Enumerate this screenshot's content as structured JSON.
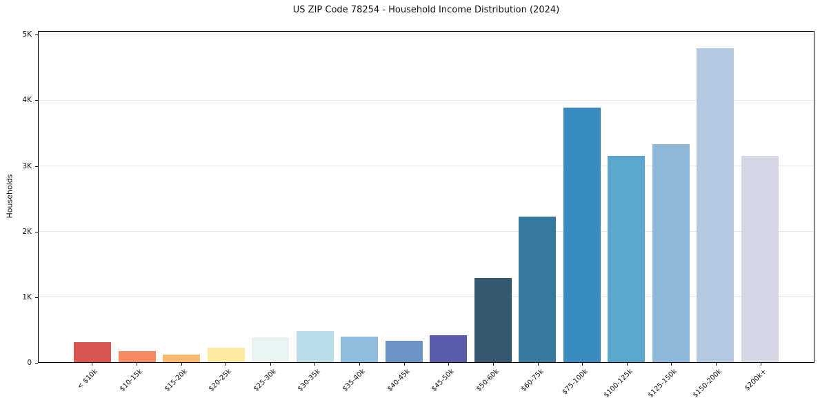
{
  "title": "US ZIP Code 78254 - Household Income Distribution (2024)",
  "chart_data": {
    "type": "bar",
    "title": "US ZIP Code 78254 - Household Income Distribution (2024)",
    "xlabel": "",
    "ylabel": "Households",
    "categories": [
      "< $10k",
      "$10-15k",
      "$15-20k",
      "$20-25k",
      "$25-30k",
      "$30-35k",
      "$35-40k",
      "$40-45k",
      "$45-50k",
      "$50-60k",
      "$60-75k",
      "$75-100k",
      "$100-125k",
      "$125-150k",
      "$150-200k",
      "$200k+"
    ],
    "values": [
      310,
      165,
      115,
      225,
      380,
      470,
      395,
      330,
      410,
      1290,
      2230,
      3890,
      3160,
      3330,
      4800,
      3160
    ],
    "bar_colors": [
      "#d95652",
      "#f58a63",
      "#fab96e",
      "#fdeba4",
      "#e8f4f2",
      "#badee8",
      "#8fbcdb",
      "#6b93c4",
      "#5a5caa",
      "#35596f",
      "#37799e",
      "#398bc0",
      "#5ba6cc",
      "#8eb7d8",
      "#b5c8e1",
      "#d6d8e5"
    ],
    "ytick_values": [
      0,
      1000,
      2000,
      3000,
      4000,
      5000
    ],
    "ytick_labels": [
      "0",
      "1K",
      "2K",
      "3K",
      "4K",
      "5K"
    ],
    "ylim": [
      0,
      5055
    ],
    "grid": "horizontal",
    "grid_color": "#e8e8e8",
    "x_tick_rotation": 45,
    "background": "#ffffff"
  }
}
